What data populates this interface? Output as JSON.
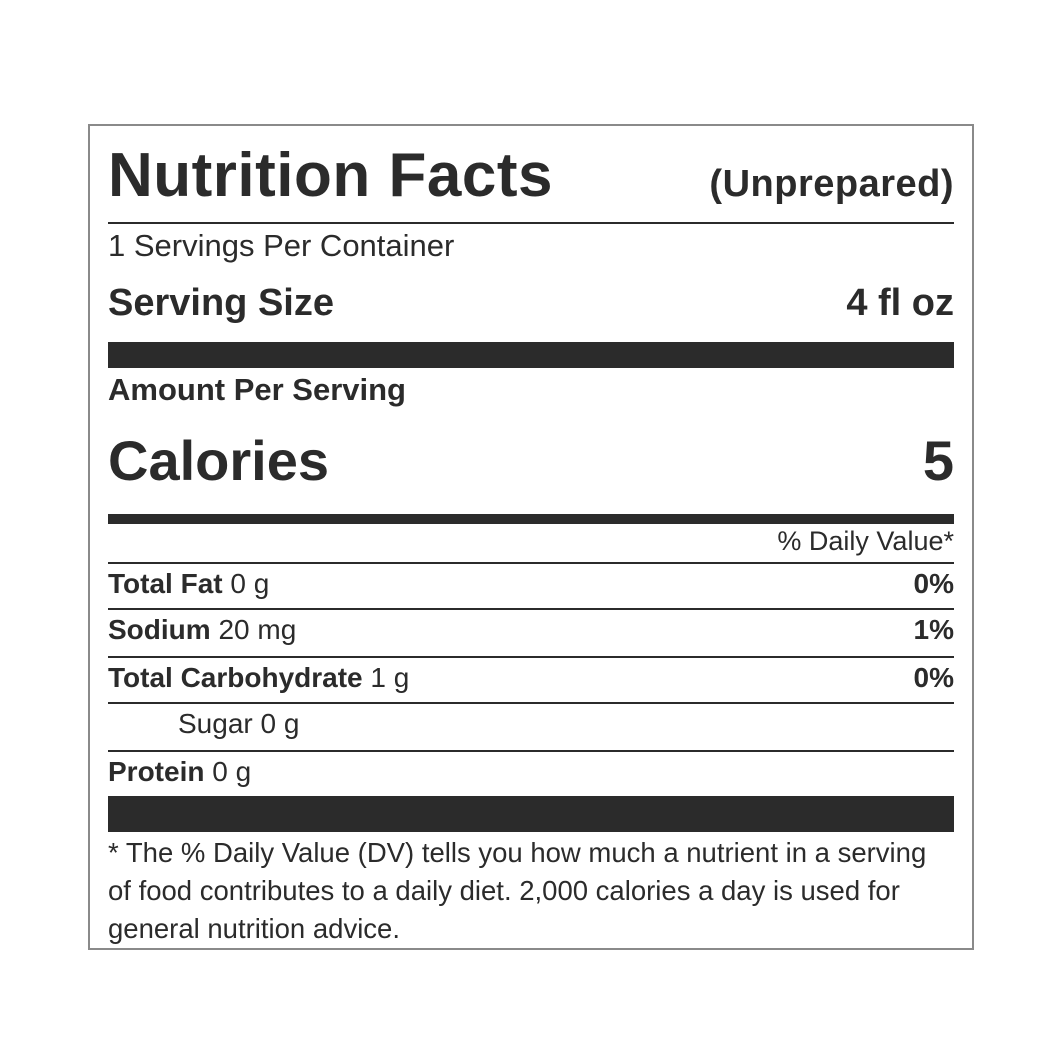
{
  "label": {
    "title": "Nutrition Facts",
    "subtitle": "(Unprepared)",
    "servings_per_container": "1 Servings Per Container",
    "serving_size_label": "Serving Size",
    "serving_size_value": "4 fl oz",
    "amount_per_serving": "Amount Per Serving",
    "calories_label": "Calories",
    "calories_value": "5",
    "daily_value_header": "% Daily Value*",
    "nutrients": [
      {
        "name": "Total Fat",
        "amount": "0 g",
        "dv": "0%"
      },
      {
        "name": "Sodium",
        "amount": "20 mg",
        "dv": "1%"
      },
      {
        "name": "Total Carbohydrate",
        "amount": "1 g",
        "dv": "0%"
      },
      {
        "name": "Sugar",
        "amount": "0 g",
        "dv": ""
      },
      {
        "name": "Protein",
        "amount": "0 g",
        "dv": ""
      }
    ],
    "footnote": "* The % Daily Value (DV) tells you how much a nutrient in a serving of food contributes to a daily diet. 2,000 calories a day is used for general nutrition advice."
  }
}
